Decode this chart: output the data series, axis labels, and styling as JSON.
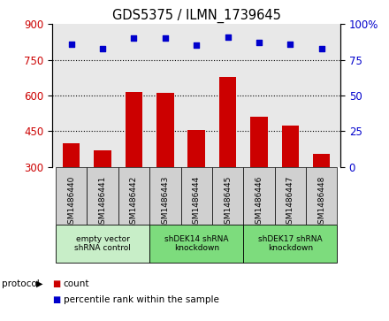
{
  "title": "GDS5375 / ILMN_1739645",
  "samples": [
    "GSM1486440",
    "GSM1486441",
    "GSM1486442",
    "GSM1486443",
    "GSM1486444",
    "GSM1486445",
    "GSM1486446",
    "GSM1486447",
    "GSM1486448"
  ],
  "counts": [
    400,
    370,
    615,
    610,
    455,
    680,
    510,
    475,
    355
  ],
  "percentiles": [
    86,
    83,
    90,
    90,
    85,
    91,
    87,
    86,
    83
  ],
  "ylim_left": [
    300,
    900
  ],
  "ylim_right": [
    0,
    100
  ],
  "yticks_left": [
    300,
    450,
    600,
    750,
    900
  ],
  "yticks_right": [
    0,
    25,
    50,
    75,
    100
  ],
  "groups": [
    {
      "label": "empty vector\nshRNA control",
      "start": 0,
      "end": 3,
      "color": "#c8eec8"
    },
    {
      "label": "shDEK14 shRNA\nknockdown",
      "start": 3,
      "end": 6,
      "color": "#7ddc7d"
    },
    {
      "label": "shDEK17 shRNA\nknockdown",
      "start": 6,
      "end": 9,
      "color": "#7ddc7d"
    }
  ],
  "bar_color": "#cc0000",
  "dot_color": "#0000cc",
  "grid_color": "#000000",
  "tick_label_color_left": "#cc0000",
  "tick_label_color_right": "#0000cc",
  "plot_bg_color": "#e8e8e8",
  "xtick_bg_color": "#d0d0d0",
  "protocol_label": "protocol",
  "legend_count_label": "count",
  "legend_pct_label": "percentile rank within the sample"
}
